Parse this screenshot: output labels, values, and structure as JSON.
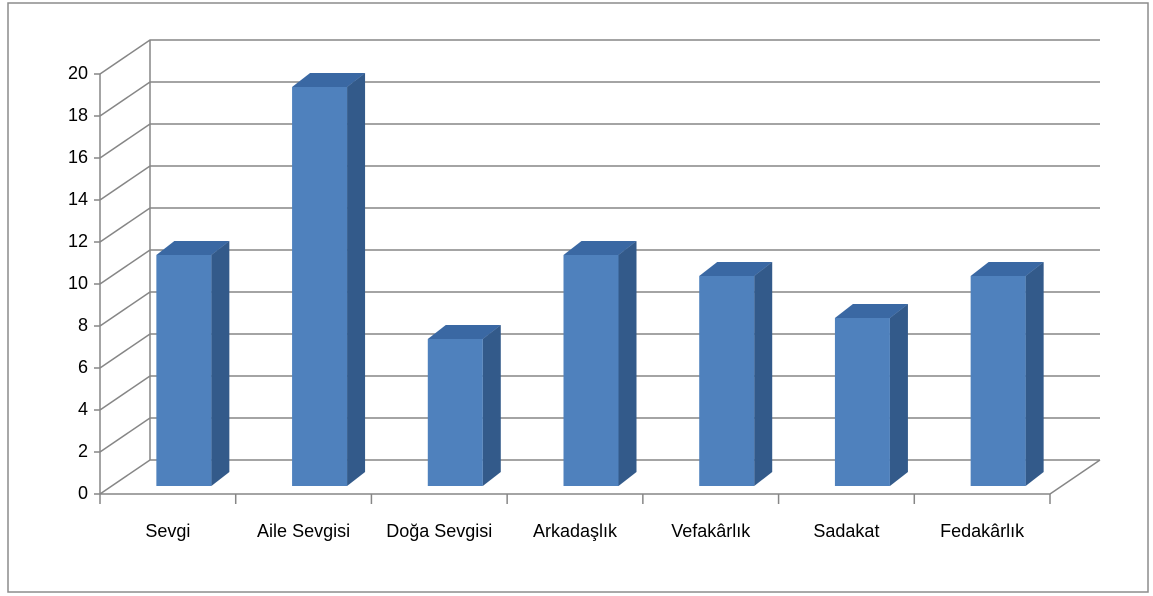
{
  "chart_data": {
    "type": "bar3d",
    "categories": [
      "Sevgi",
      "Aile Sevgisi",
      "Doğa Sevgisi",
      "Arkadaşlık",
      "Vefakârlık",
      "Sadakat",
      "Fedakârlık"
    ],
    "values": [
      11,
      19,
      7,
      11,
      10,
      8,
      10
    ],
    "color": "#4f81bd",
    "ylim": [
      0,
      20
    ],
    "yticks": [
      0,
      2,
      4,
      6,
      8,
      10,
      12,
      14,
      16,
      18,
      20
    ],
    "grid": true
  }
}
